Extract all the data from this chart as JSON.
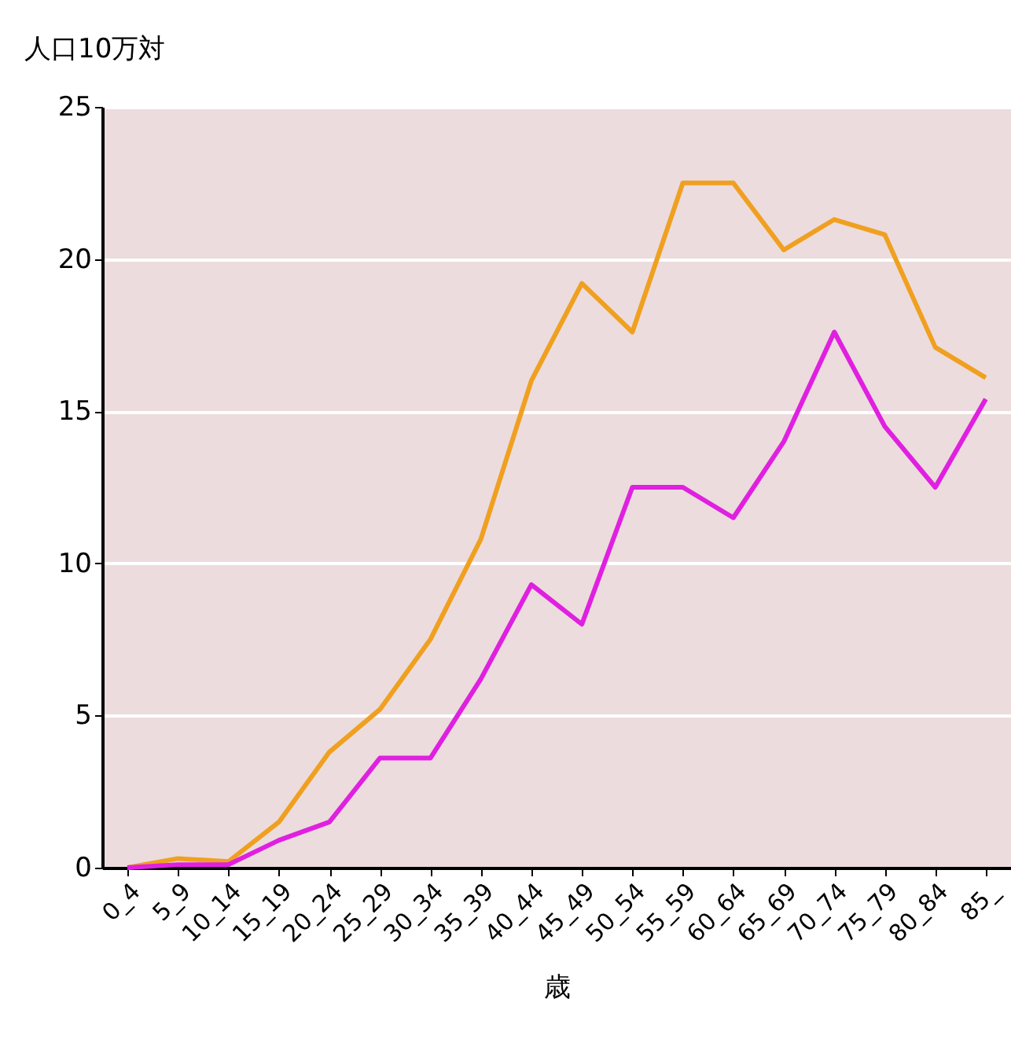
{
  "chart_data": {
    "type": "line",
    "xlabel": "歳",
    "ylabel": "人口10万対",
    "categories": [
      "0_4",
      "5_9",
      "10_14",
      "15_19",
      "20_24",
      "25_29",
      "30_34",
      "35_39",
      "40_44",
      "45_49",
      "50_54",
      "55_59",
      "60_64",
      "65_69",
      "70_74",
      "75_79",
      "80_84",
      "85_"
    ],
    "series": [
      {
        "color": "#f0a020",
        "values": [
          0,
          0.3,
          0.2,
          1.5,
          3.8,
          5.2,
          7.5,
          10.8,
          16.0,
          19.2,
          17.6,
          22.5,
          22.5,
          20.3,
          21.3,
          20.8,
          17.1,
          16.1
        ]
      },
      {
        "color": "#e020e0",
        "values": [
          0,
          0.1,
          0.1,
          0.9,
          1.5,
          3.6,
          3.6,
          6.2,
          9.3,
          8.0,
          12.5,
          12.5,
          11.5,
          14.0,
          17.6,
          14.5,
          12.5,
          15.4
        ]
      }
    ],
    "ylim": [
      0,
      25
    ],
    "yticks": [
      0,
      5,
      10,
      15,
      20,
      25
    ],
    "grid": "y",
    "legend": false,
    "marker": "none",
    "line_style": "solid"
  }
}
